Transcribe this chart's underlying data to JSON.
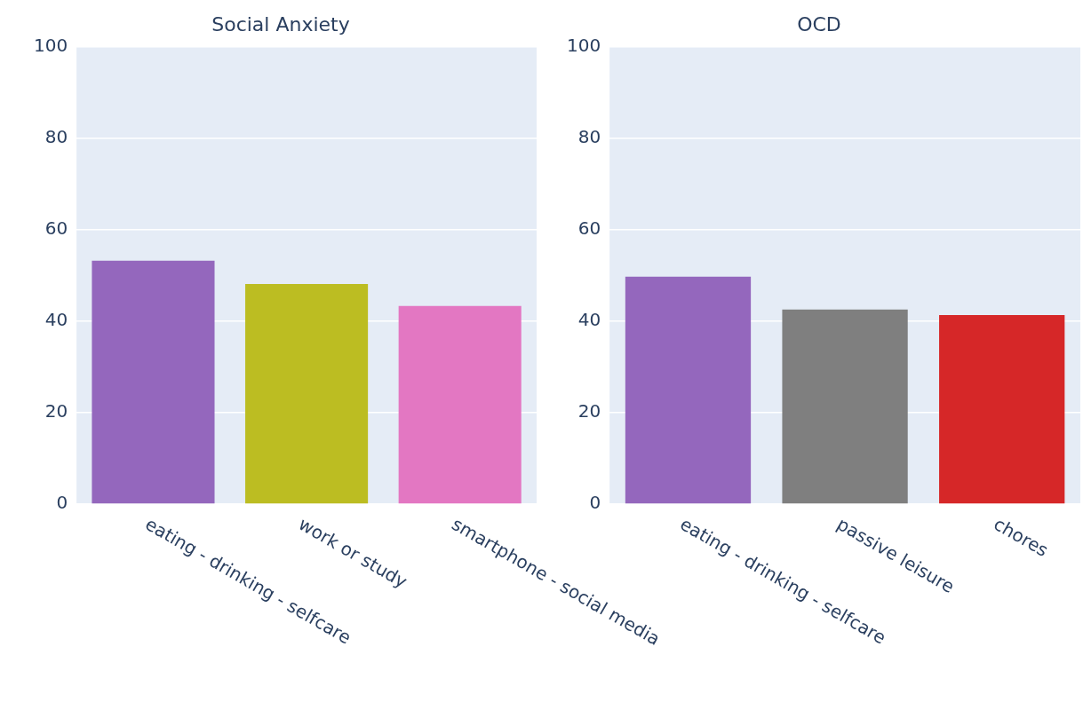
{
  "chart_data": [
    {
      "type": "bar",
      "title": "Social Anxiety",
      "categories": [
        "eating - drinking - selfcare",
        "work or study",
        "smartphone - social media"
      ],
      "values": [
        53.2,
        48.1,
        43.3
      ],
      "colors": [
        "#9467bd",
        "#bcbd22",
        "#e377c2"
      ],
      "ylim": [
        0,
        100
      ],
      "yticks": [
        0,
        20,
        40,
        60,
        80,
        100
      ],
      "grid": "y",
      "legend": false
    },
    {
      "type": "bar",
      "title": "OCD",
      "categories": [
        "eating - drinking - selfcare",
        "passive leisure",
        "chores"
      ],
      "values": [
        49.7,
        42.5,
        41.3
      ],
      "colors": [
        "#9467bd",
        "#7f7f7f",
        "#d62728"
      ],
      "ylim": [
        0,
        100
      ],
      "yticks": [
        0,
        20,
        40,
        60,
        80,
        100
      ],
      "grid": "y",
      "legend": false
    }
  ]
}
